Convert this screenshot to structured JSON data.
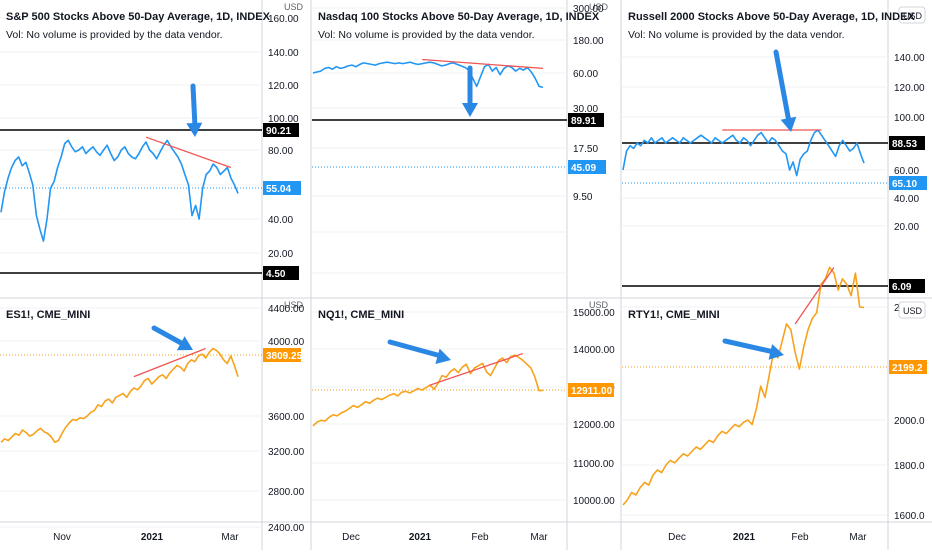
{
  "theme": {
    "axis_text": "#131722",
    "grid": "#eef0f3",
    "separator": "#d1d4dc",
    "breadth_line": "#2196f3",
    "futures_line": "#f7a21b",
    "trend_line": "#f05454",
    "arrow": "#2a88e4",
    "level_line": "#000000",
    "last_breadth_badge": "#2196f3",
    "last_futures_badge": "#ff9800"
  },
  "chart_data": [
    {
      "type": "line",
      "title": "S&P 500 Stocks Above 50-Day Average, 1D, INDEX",
      "subtitle": "Vol: No volume is provided by the data vendor.",
      "currency": "USD",
      "ylim": [
        5,
        165
      ],
      "yticks": [
        "160.00",
        "140.00",
        "120.00",
        "100.00",
        "80.00",
        "60.00",
        "40.00",
        "20.00"
      ],
      "xticks": [],
      "y": [
        44,
        56,
        64,
        70,
        74,
        76,
        71,
        73,
        67,
        60,
        42,
        34,
        27,
        40,
        58,
        62,
        70,
        76,
        84,
        86,
        82,
        79,
        80,
        82,
        78,
        80,
        82,
        79,
        77,
        80,
        83,
        78,
        74,
        76,
        80,
        82,
        78,
        76,
        75,
        78,
        82,
        85,
        80,
        78,
        75,
        79,
        83,
        86,
        82,
        79,
        76,
        72,
        66,
        60,
        42,
        48,
        40,
        58,
        66,
        68,
        72,
        70,
        66,
        68,
        70,
        64,
        60,
        55.04
      ],
      "hlines": [
        {
          "value": 90.21,
          "label": "90.21"
        },
        {
          "value": 4.5,
          "label": "4.50"
        }
      ],
      "last": {
        "value": 55.04,
        "label": "55.04"
      },
      "trendline": {
        "from": [
          41,
          88
        ],
        "to": [
          65,
          70
        ]
      },
      "arrow": "down",
      "role": "breadth"
    },
    {
      "type": "line",
      "title": "Nasdaq 100 Stocks Above 50-Day Average, 1D, INDEX",
      "subtitle": "Vol: No volume is provided by the data vendor.",
      "currency": "USD",
      "ylim": [
        7,
        500
      ],
      "yscale": "log",
      "yticks": [
        "300.00",
        "180.00",
        "60.00",
        "30.00",
        "17.50",
        "9.50"
      ],
      "xticks": [],
      "y": [
        60,
        62,
        64,
        70,
        72,
        68,
        74,
        70,
        72,
        76,
        78,
        74,
        80,
        84,
        82,
        80,
        78,
        82,
        84,
        86,
        84,
        82,
        84,
        82,
        84,
        86,
        82,
        80,
        82,
        84,
        86,
        84,
        80,
        76,
        78,
        82,
        84,
        80,
        76,
        72,
        66,
        54,
        46,
        56,
        74,
        80,
        64,
        72,
        58,
        70,
        76,
        72,
        64,
        70,
        66,
        72,
        62,
        54,
        46,
        45.09
      ],
      "hlines": [
        {
          "value": 89.91,
          "label": "89.91"
        }
      ],
      "last": {
        "value": 45.09,
        "label": "45.09"
      },
      "trendline": {
        "from": [
          28,
          94
        ],
        "to": [
          59,
          70
        ]
      },
      "arrow": "down",
      "role": "breadth"
    },
    {
      "type": "line",
      "title": "Russell 2000 Stocks Above 50-Day Average, 1D, INDEX",
      "subtitle": "Vol: No volume is provided by the data vendor.",
      "currency": "USD",
      "ylim": [
        3,
        165
      ],
      "yticks": [
        "140.00",
        "120.00",
        "100.00",
        "80.00",
        "60.00",
        "40.00",
        "20.00"
      ],
      "xticks": [],
      "y": [
        60,
        74,
        78,
        76,
        80,
        78,
        82,
        80,
        84,
        80,
        82,
        84,
        80,
        82,
        84,
        82,
        80,
        84,
        82,
        80,
        82,
        84,
        86,
        84,
        82,
        80,
        84,
        82,
        80,
        82,
        84,
        86,
        82,
        80,
        84,
        82,
        78,
        82,
        86,
        88,
        84,
        80,
        84,
        82,
        78,
        74,
        72,
        60,
        66,
        56,
        68,
        72,
        74,
        82,
        88,
        90,
        86,
        82,
        78,
        74,
        70,
        78,
        82,
        78,
        74,
        76,
        80,
        72,
        65.1
      ],
      "hlines": [
        {
          "value": 88.53,
          "label": "88.53"
        },
        {
          "value": 6.09,
          "label": "6.09"
        }
      ],
      "last": {
        "value": 65.1,
        "label": "65.10"
      },
      "trendline": {
        "from": [
          28,
          90
        ],
        "to": [
          56,
          90
        ]
      },
      "arrow": "down",
      "role": "breadth"
    },
    {
      "type": "line",
      "title": "ES1!, CME_MINI",
      "currency": "USD",
      "ylim": [
        2150,
        4450
      ],
      "yticks": [
        "4400.00",
        "4000.00",
        "3600.00",
        "3200.00",
        "2800.00",
        "2400.00"
      ],
      "xticks": [
        "Nov",
        "2021",
        "Mar"
      ],
      "y": [
        3300,
        3340,
        3320,
        3360,
        3400,
        3380,
        3440,
        3410,
        3370,
        3390,
        3430,
        3460,
        3420,
        3400,
        3360,
        3300,
        3320,
        3400,
        3470,
        3520,
        3560,
        3550,
        3580,
        3570,
        3600,
        3620,
        3630,
        3660,
        3650,
        3680,
        3690,
        3670,
        3700,
        3710,
        3720,
        3700,
        3730,
        3750,
        3740,
        3760,
        3790,
        3800,
        3770,
        3790,
        3810,
        3820,
        3800,
        3830,
        3850,
        3870,
        3860,
        3840,
        3880,
        3900,
        3890,
        3920,
        3930,
        3910,
        3940,
        3960,
        3950,
        3930,
        3900,
        3880,
        3920,
        3870,
        3809.25
      ],
      "last": {
        "value": 3809.25,
        "label": "3809.25"
      },
      "trendline": {
        "from": [
          37,
          3810
        ],
        "to": [
          57,
          3960
        ]
      },
      "arrow": "right",
      "role": "futures"
    },
    {
      "type": "line",
      "title": "NQ1!, CME_MINI",
      "currency": "USD",
      "ylim": [
        9700,
        15350
      ],
      "yticks": [
        "15000.00",
        "14000.00",
        "13000.00",
        "12000.00",
        "11000.00",
        "10000.00"
      ],
      "xticks": [
        "Dec",
        "2021",
        "Feb",
        "Mar"
      ],
      "y": [
        11950,
        12050,
        12100,
        12080,
        12180,
        12250,
        12220,
        12300,
        12350,
        12420,
        12500,
        12450,
        12520,
        12600,
        12560,
        12640,
        12700,
        12660,
        12720,
        12780,
        12820,
        12760,
        12860,
        12880,
        12840,
        12900,
        12960,
        12920,
        12980,
        13050,
        12940,
        13100,
        13300,
        13260,
        13400,
        13480,
        13380,
        13520,
        13600,
        13350,
        13500,
        13560,
        13620,
        13400,
        13300,
        13500,
        13700,
        13760,
        13640,
        13800,
        13840,
        13780,
        13700,
        13600,
        13500,
        13260,
        12900,
        12911
      ],
      "last": {
        "value": 12911,
        "label": "12911.00"
      },
      "trendline": {
        "from": [
          29,
          13050
        ],
        "to": [
          52,
          13880
        ]
      },
      "arrow": "right",
      "role": "futures"
    },
    {
      "type": "line",
      "title": "RTY1!, CME_MINI",
      "currency": "USD",
      "ylim": [
        1570,
        2300
      ],
      "yticks": [
        "2200.0",
        "2000.0",
        "1800.0",
        "1600.0"
      ],
      "xticks": [
        "Dec",
        "2021",
        "Feb",
        "Mar"
      ],
      "y": [
        1640,
        1660,
        1690,
        1680,
        1710,
        1730,
        1720,
        1760,
        1780,
        1770,
        1800,
        1820,
        1810,
        1830,
        1850,
        1840,
        1860,
        1880,
        1870,
        1890,
        1910,
        1900,
        1930,
        1950,
        1940,
        1960,
        1980,
        1970,
        1990,
        2000,
        1980,
        2020,
        2060,
        2040,
        2080,
        2120,
        2110,
        2140,
        2170,
        2160,
        2120,
        2090,
        2130,
        2160,
        2180,
        2190,
        2240,
        2250,
        2270,
        2260,
        2230,
        2250,
        2240,
        2220,
        2260,
        2200,
        2199.2
      ],
      "last": {
        "value": 2199.2,
        "label": "2199.2"
      },
      "trendline": {
        "from": [
          40,
          2170
        ],
        "to": [
          49,
          2270
        ]
      },
      "arrow": "right",
      "role": "futures"
    }
  ]
}
